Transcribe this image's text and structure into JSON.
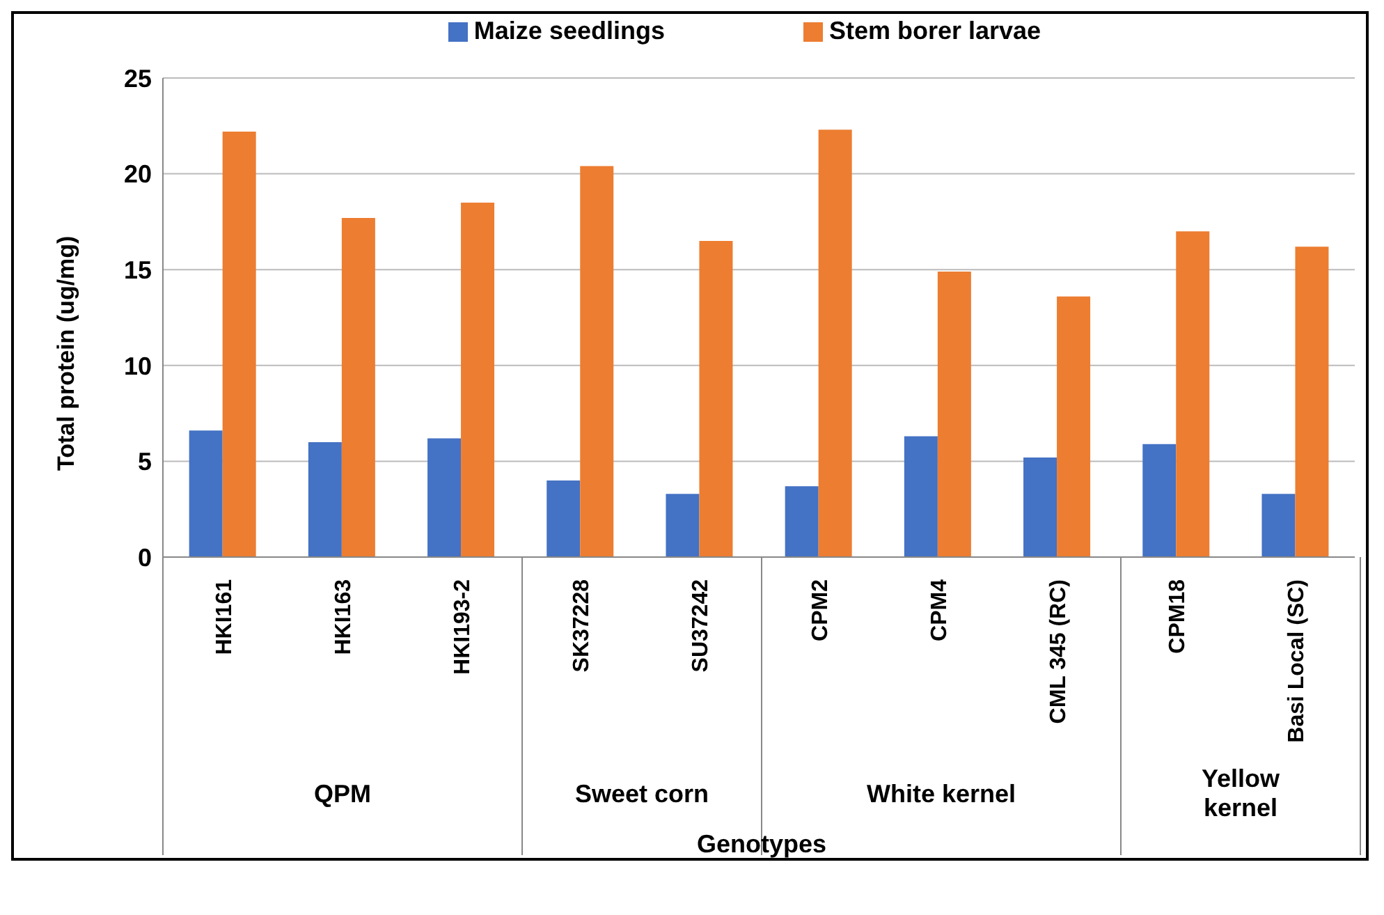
{
  "chart_data": {
    "type": "bar",
    "xlabel": "Genotypes",
    "ylabel": "Total protein (ug/mg)",
    "categories": [
      "HKI161",
      "HKI163",
      "HKI193-2",
      "SK37228",
      "SU37242",
      "CPM2",
      "CPM4",
      "CML 345 (RC)",
      "CPM18",
      "Basi Local (SC)"
    ],
    "series": [
      {
        "name": "Maize seedlings",
        "color": "#4472c4",
        "values": [
          6.6,
          6.0,
          6.2,
          4.0,
          3.3,
          3.7,
          6.3,
          5.2,
          5.9,
          3.3
        ]
      },
      {
        "name": "Stem borer larvae",
        "color": "#ed7d31",
        "values": [
          22.2,
          17.7,
          18.5,
          20.4,
          16.5,
          22.3,
          14.9,
          13.6,
          17.0,
          16.2
        ]
      }
    ],
    "ylim": [
      0,
      25
    ],
    "yticks": [
      0,
      5,
      10,
      15,
      20,
      25
    ],
    "grid": "y",
    "legend": "top",
    "annotations": [
      "QPM",
      "Sweet corn",
      "White kernel",
      "Yellow kernel"
    ]
  }
}
